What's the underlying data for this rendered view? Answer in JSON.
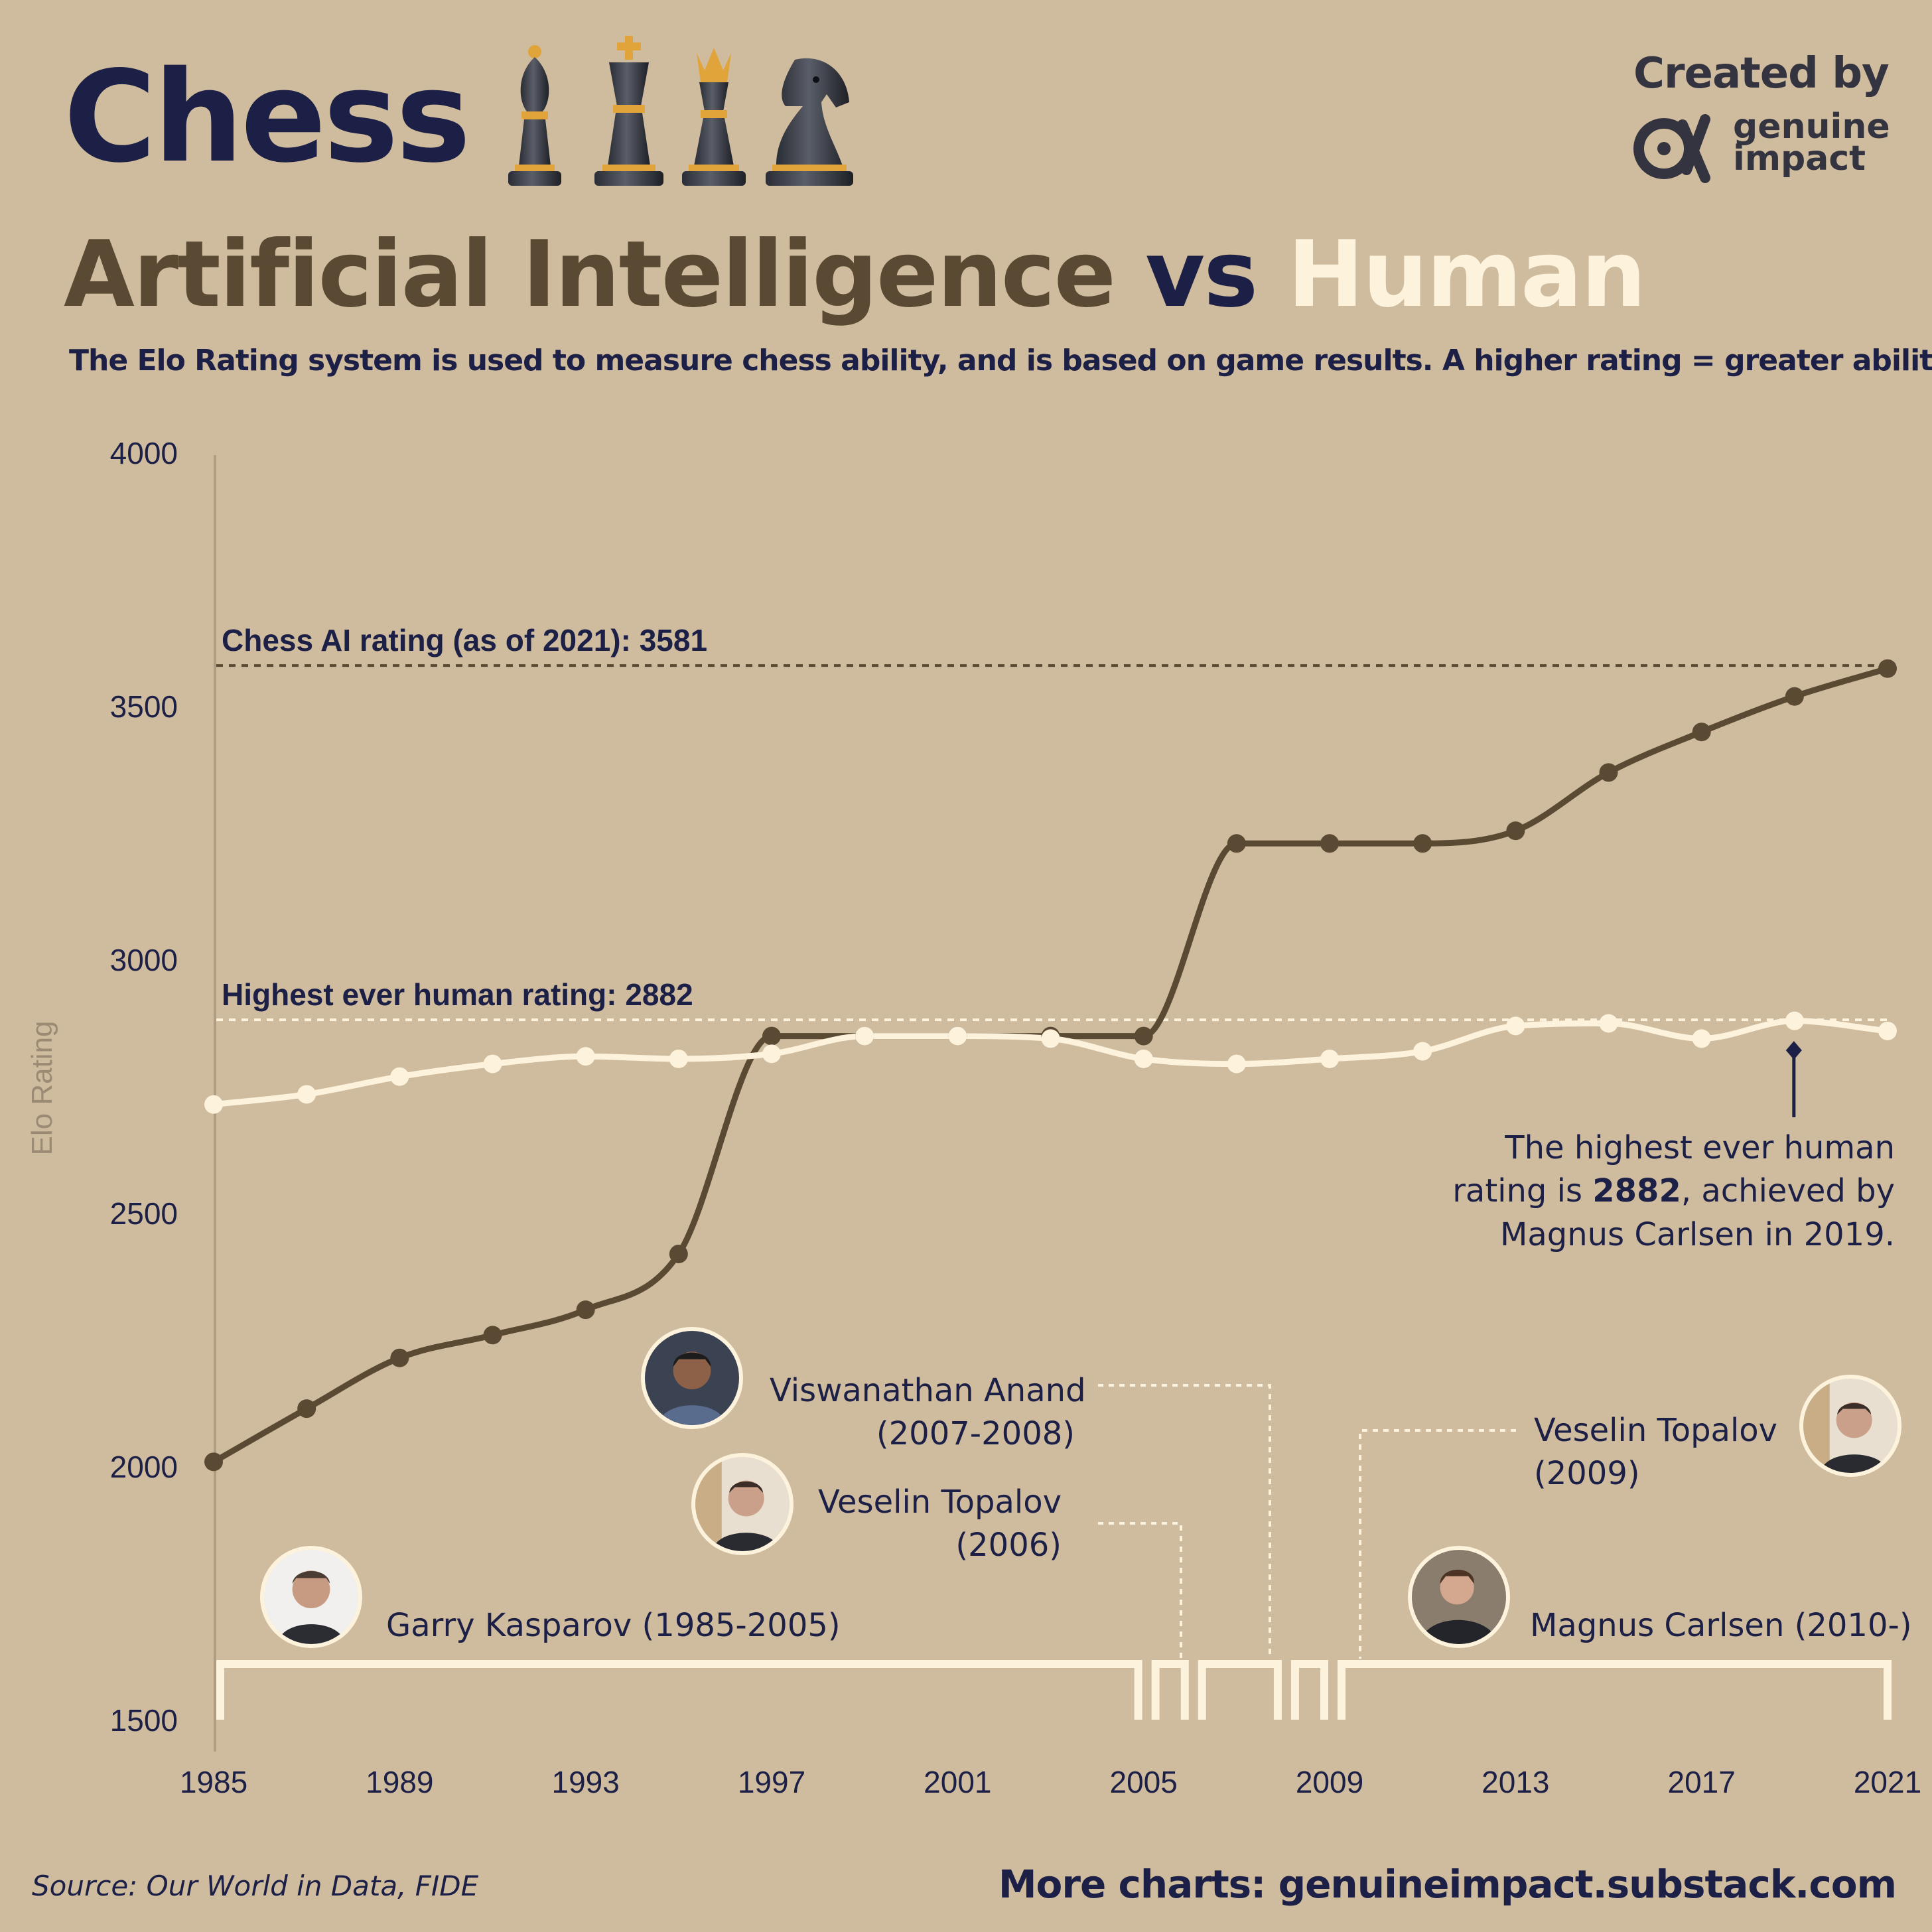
{
  "header": {
    "title": "Chess",
    "subtitle_ai": "Artificial Intelligence",
    "subtitle_vs": "vs",
    "subtitle_human": "Human",
    "description": "The Elo Rating system is used to measure chess ability, and is based on game results. A higher rating = greater ability.",
    "created_by": "Created by",
    "brand_line1": "genuine",
    "brand_line2": "impact"
  },
  "footer": {
    "source": "Source: Our World in Data, FIDE",
    "more": "More charts: genuineimpact.substack.com"
  },
  "colors": {
    "background": "#cfbb9d",
    "ai_line": "#5a4a33",
    "human_line": "#fdf3dd",
    "navy": "#1d2046"
  },
  "icons": [
    "bishop-icon",
    "king-icon",
    "queen-icon",
    "knight-icon",
    "genuine-impact-logo-icon"
  ],
  "chart_data": {
    "type": "line",
    "ylabel": "Elo Rating",
    "ylim": [
      1500,
      4000
    ],
    "xlim": [
      1985,
      2021
    ],
    "yticks": [
      1500,
      2000,
      2500,
      3000,
      3500,
      4000
    ],
    "xticks": [
      1985,
      1989,
      1993,
      1997,
      2001,
      2005,
      2009,
      2013,
      2017,
      2021
    ],
    "grid": false,
    "series": [
      {
        "key": "ai",
        "x": [
          1985,
          1987,
          1989,
          1991,
          1993,
          1995,
          1997,
          1999,
          2001,
          2003,
          2005,
          2007,
          2009,
          2011,
          2013,
          2015,
          2017,
          2019,
          2021
        ],
        "values": [
          2010,
          2115,
          2215,
          2260,
          2310,
          2420,
          2850,
          2850,
          2850,
          2850,
          2850,
          3230,
          3230,
          3230,
          3255,
          3370,
          3450,
          3520,
          3575
        ]
      },
      {
        "key": "human",
        "x": [
          1985,
          1987,
          1989,
          1991,
          1993,
          1995,
          1997,
          1999,
          2001,
          2003,
          2005,
          2007,
          2009,
          2011,
          2013,
          2015,
          2017,
          2019,
          2021
        ],
        "values": [
          2715,
          2735,
          2770,
          2795,
          2810,
          2805,
          2815,
          2850,
          2850,
          2845,
          2805,
          2795,
          2805,
          2820,
          2870,
          2875,
          2845,
          2880,
          2860
        ]
      }
    ],
    "reference_lines": [
      {
        "label": "Chess AI rating (as of 2021): 3581",
        "value": 3581,
        "color": "#5a4a33"
      },
      {
        "label": "Highest ever human rating: 2882",
        "value": 2882,
        "color": "#fdf3dd"
      }
    ],
    "annotation": {
      "line1": "The highest ever human",
      "line2_pre": "rating is ",
      "line2_bold": "2882",
      "line2_post": ", achieved by",
      "line3": "Magnus Carlsen in 2019.",
      "x": 2019,
      "y": 2882
    },
    "champions": [
      {
        "name": "Garry Kasparov (1985-2005)",
        "start": 1985,
        "end": 2005
      },
      {
        "name": "Veselin Topalov",
        "years": "(2006)",
        "start": 2005,
        "end": 2006
      },
      {
        "name": "Viswanathan Anand",
        "years": "(2007-2008)",
        "start": 2006,
        "end": 2008
      },
      {
        "name": "Veselin Topalov",
        "years": "(2009)",
        "start": 2008,
        "end": 2009
      },
      {
        "name": "Magnus Carlsen (2010-)",
        "start": 2009,
        "end": 2021
      }
    ]
  }
}
